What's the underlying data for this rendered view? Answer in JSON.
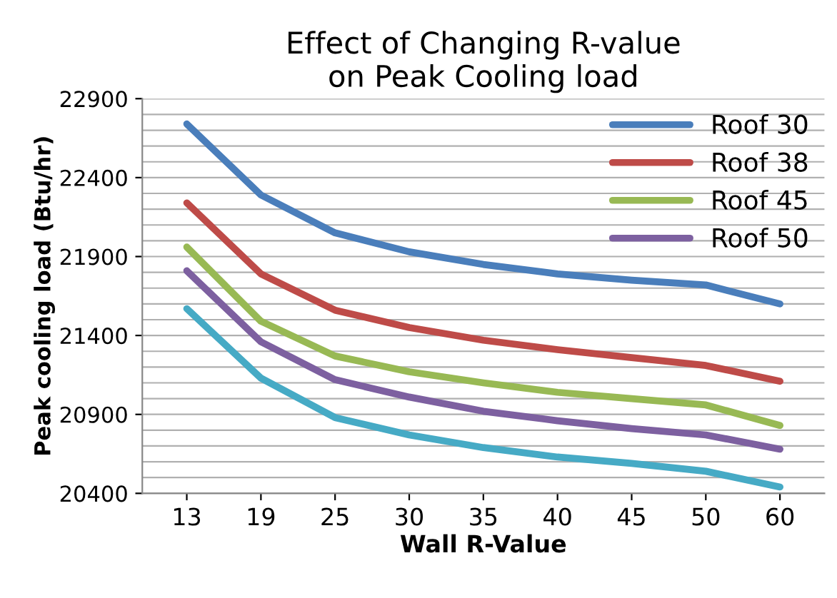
{
  "chart_data": {
    "type": "line",
    "title": "Effect of Changing R-value\non Peak Cooling load",
    "xlabel": "Wall R-Value",
    "ylabel": "Peak cooling load (Btu/hr)",
    "categories": [
      "13",
      "19",
      "25",
      "30",
      "35",
      "40",
      "45",
      "50",
      "60"
    ],
    "series": [
      {
        "name": "Roof 30",
        "color": "#4a7ebb",
        "values": [
          22740,
          22290,
          22050,
          21930,
          21850,
          21790,
          21750,
          21720,
          21600
        ]
      },
      {
        "name": "Roof 38",
        "color": "#be4b48",
        "values": [
          22240,
          21790,
          21560,
          21450,
          21370,
          21310,
          21260,
          21210,
          21110
        ]
      },
      {
        "name": "Roof 45",
        "color": "#98b954",
        "values": [
          21960,
          21490,
          21270,
          21170,
          21100,
          21040,
          21000,
          20960,
          20830
        ]
      },
      {
        "name": "Roof 50",
        "color": "#7d60a0",
        "values": [
          21810,
          21360,
          21120,
          21010,
          20920,
          20860,
          20810,
          20770,
          20680
        ]
      },
      {
        "color": "#46aac5",
        "values": [
          21570,
          21130,
          20880,
          20770,
          20690,
          20630,
          20590,
          20540,
          20440
        ]
      }
    ],
    "ylim": [
      20400,
      22900
    ],
    "yticks": [
      20400,
      {
        "value": 20500,
        "label": null
      },
      {
        "value": 20600,
        "label": null
      },
      {
        "value": 20700,
        "label": null
      },
      {
        "value": 20800,
        "label": null
      },
      20900,
      {
        "value": 21000,
        "label": null
      },
      {
        "value": 21100,
        "label": null
      },
      {
        "value": 21200,
        "label": null
      },
      {
        "value": 21300,
        "label": null
      },
      21400,
      {
        "value": 21500,
        "label": null
      },
      {
        "value": 21600,
        "label": null
      },
      {
        "value": 21700,
        "label": null
      },
      {
        "value": 21800,
        "label": null
      },
      21900,
      {
        "value": 22000,
        "label": null
      },
      {
        "value": 22100,
        "label": null
      },
      {
        "value": 22200,
        "label": null
      },
      {
        "value": 22300,
        "label": null
      },
      22400,
      {
        "value": 22500,
        "label": null
      },
      {
        "value": 22600,
        "label": null
      },
      {
        "value": 22700,
        "label": null
      },
      {
        "value": 22800,
        "label": null
      },
      22900
    ],
    "grid": "y",
    "legend": "top right",
    "marker": "none",
    "line_style": "solid"
  }
}
